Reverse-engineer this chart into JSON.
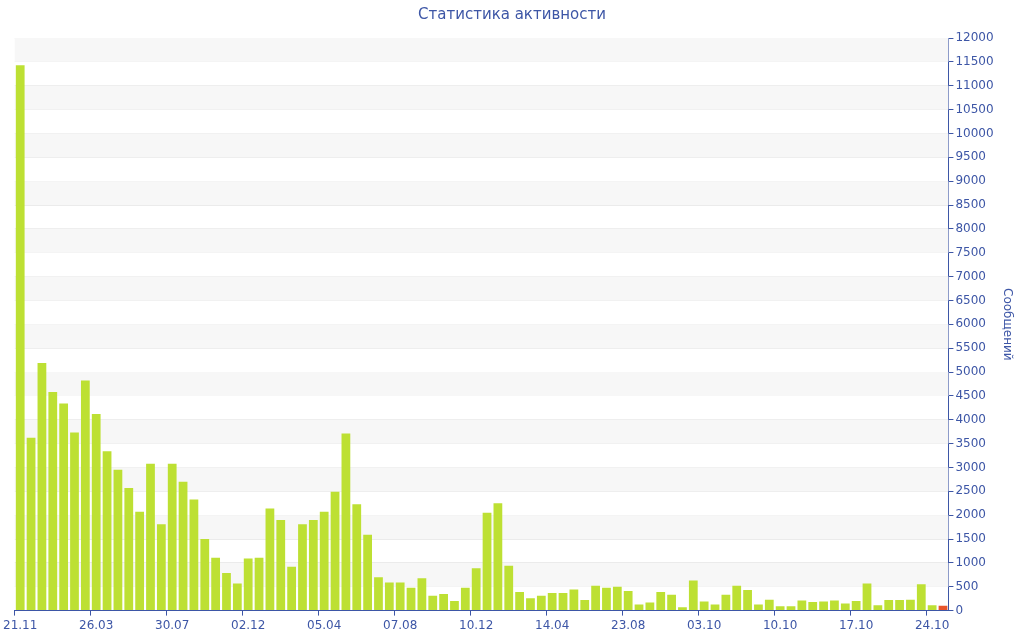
{
  "chart_data": {
    "type": "bar",
    "title": "Статистика активности",
    "ylabel": "Сообщений",
    "categories": [
      "21.11",
      null,
      null,
      null,
      null,
      null,
      null,
      "26.03",
      null,
      null,
      null,
      null,
      null,
      null,
      "30.07",
      null,
      null,
      null,
      null,
      null,
      null,
      "02.12",
      null,
      null,
      null,
      null,
      null,
      null,
      "05.04",
      null,
      null,
      null,
      null,
      null,
      null,
      "07.08",
      null,
      null,
      null,
      null,
      null,
      null,
      "10.12",
      null,
      null,
      null,
      null,
      null,
      null,
      "14.04",
      null,
      null,
      null,
      null,
      null,
      null,
      "23.08",
      null,
      null,
      null,
      null,
      null,
      null,
      "03.10",
      null,
      null,
      null,
      null,
      null,
      null,
      "10.10",
      null,
      null,
      null,
      null,
      null,
      null,
      "17.10",
      null,
      null,
      null,
      null,
      null,
      null,
      "24.10",
      null
    ],
    "values": [
      11430,
      3620,
      5190,
      4580,
      4340,
      3730,
      4820,
      4120,
      3340,
      2950,
      2570,
      2070,
      3080,
      1810,
      3080,
      2700,
      2330,
      1500,
      1110,
      790,
      570,
      1090,
      1110,
      2140,
      1900,
      920,
      1810,
      1900,
      2070,
      2490,
      3710,
      2230,
      1590,
      700,
      590,
      590,
      480,
      680,
      310,
      350,
      200,
      480,
      890,
      2050,
      2250,
      940,
      390,
      260,
      310,
      370,
      370,
      440,
      220,
      520,
      480,
      500,
      410,
      130,
      170,
      390,
      330,
      70,
      630,
      190,
      130,
      330,
      520,
      430,
      130,
      230,
      90,
      90,
      210,
      180,
      190,
      210,
      150,
      200,
      570,
      110,
      220,
      220,
      230,
      550,
      110,
      100
    ],
    "colors": [
      "#bde033",
      "#bde033",
      "#bde033",
      "#bde033",
      "#bde033",
      "#bde033",
      "#bde033",
      "#bde033",
      "#bde033",
      "#bde033",
      "#bde033",
      "#bde033",
      "#bde033",
      "#bde033",
      "#bde033",
      "#bde033",
      "#bde033",
      "#bde033",
      "#bde033",
      "#bde033",
      "#bde033",
      "#bde033",
      "#bde033",
      "#bde033",
      "#bde033",
      "#bde033",
      "#bde033",
      "#bde033",
      "#bde033",
      "#bde033",
      "#bde033",
      "#bde033",
      "#bde033",
      "#bde033",
      "#bde033",
      "#bde033",
      "#bde033",
      "#bde033",
      "#bde033",
      "#bde033",
      "#bde033",
      "#bde033",
      "#bde033",
      "#bde033",
      "#bde033",
      "#bde033",
      "#bde033",
      "#bde033",
      "#bde033",
      "#bde033",
      "#bde033",
      "#bde033",
      "#bde033",
      "#bde033",
      "#bde033",
      "#bde033",
      "#bde033",
      "#bde033",
      "#bde033",
      "#bde033",
      "#bde033",
      "#bde033",
      "#bde033",
      "#bde033",
      "#bde033",
      "#bde033",
      "#bde033",
      "#bde033",
      "#bde033",
      "#bde033",
      "#bde033",
      "#bde033",
      "#bde033",
      "#bde033",
      "#bde033",
      "#bde033",
      "#bde033",
      "#bde033",
      "#bde033",
      "#bde033",
      "#bde033",
      "#bde033",
      "#bde033",
      "#bde033",
      "#bde033",
      "#e8552c"
    ],
    "ylim": [
      0,
      12000
    ],
    "yticks": [
      0,
      500,
      1000,
      1500,
      2000,
      2500,
      3000,
      3500,
      4000,
      4500,
      5000,
      5500,
      6000,
      6500,
      7000,
      7500,
      8000,
      8500,
      9000,
      9500,
      10000,
      10500,
      11000,
      11500,
      12000
    ],
    "grid": "y",
    "legend": false
  }
}
